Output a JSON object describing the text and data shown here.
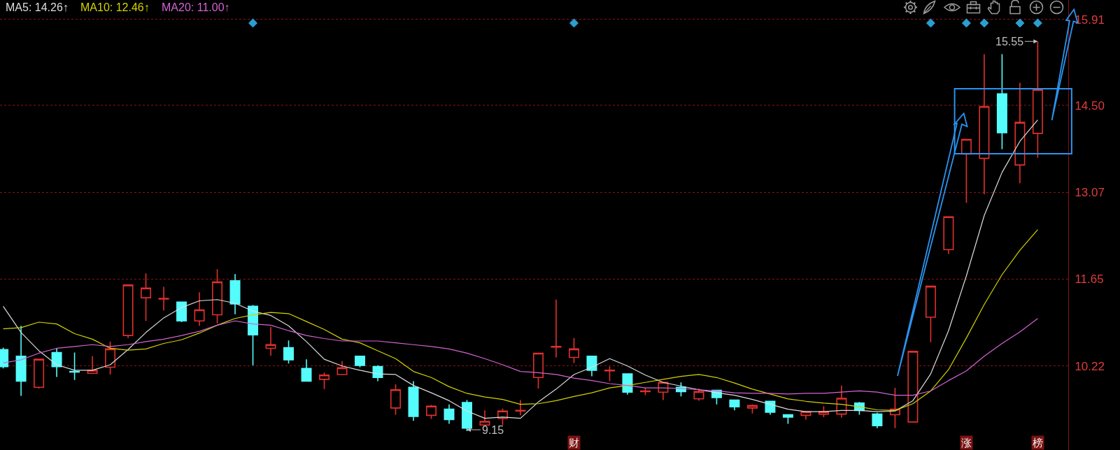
{
  "chart_data": {
    "type": "candlestick",
    "categories": [
      null,
      null,
      null,
      null,
      null,
      null,
      null,
      null,
      null,
      null,
      null,
      null,
      null,
      null,
      null,
      null,
      null,
      null,
      null,
      null,
      null,
      null,
      null,
      null,
      null,
      null,
      null,
      null,
      null,
      null,
      null,
      null,
      "财",
      null,
      null,
      null,
      null,
      null,
      null,
      null,
      null,
      null,
      null,
      null,
      null,
      null,
      null,
      null,
      null,
      null,
      null,
      null,
      null,
      null,
      "涨",
      null,
      null,
      null,
      "榜"
    ],
    "ohlc": [
      [
        10.49,
        10.52,
        10.18,
        10.21
      ],
      [
        10.38,
        10.88,
        9.73,
        9.97
      ],
      [
        9.87,
        10.33,
        9.85,
        10.33
      ],
      [
        10.44,
        10.51,
        10.04,
        10.21
      ],
      [
        10.13,
        10.44,
        9.99,
        10.12
      ],
      [
        10.1,
        10.38,
        10.1,
        10.15
      ],
      [
        10.2,
        10.62,
        10.08,
        10.5
      ],
      [
        10.72,
        11.55,
        10.68,
        11.55
      ],
      [
        11.34,
        11.74,
        10.96,
        11.5
      ],
      [
        11.32,
        11.52,
        11.13,
        11.33
      ],
      [
        11.27,
        11.27,
        10.94,
        10.96
      ],
      [
        10.96,
        11.43,
        10.88,
        11.14
      ],
      [
        11.06,
        11.81,
        10.92,
        11.6
      ],
      [
        11.62,
        11.73,
        11.07,
        11.24
      ],
      [
        11.2,
        11.22,
        10.23,
        10.73
      ],
      [
        10.51,
        10.86,
        10.39,
        10.57
      ],
      [
        10.52,
        10.64,
        10.26,
        10.32
      ],
      [
        10.18,
        10.33,
        9.97,
        9.97
      ],
      [
        10.0,
        10.11,
        9.84,
        10.07
      ],
      [
        10.08,
        10.3,
        10.08,
        10.19
      ],
      [
        10.38,
        10.38,
        10.2,
        10.23
      ],
      [
        10.21,
        10.23,
        9.97,
        10.03
      ],
      [
        9.53,
        9.92,
        9.42,
        9.83
      ],
      [
        9.87,
        9.97,
        9.32,
        9.39
      ],
      [
        9.41,
        9.58,
        9.35,
        9.56
      ],
      [
        9.51,
        9.59,
        9.27,
        9.34
      ],
      [
        9.62,
        9.66,
        9.15,
        9.2
      ],
      [
        9.25,
        9.49,
        9.25,
        9.31
      ],
      [
        9.36,
        9.52,
        9.25,
        9.48
      ],
      [
        9.48,
        9.66,
        9.41,
        9.49
      ],
      [
        10.03,
        10.43,
        9.85,
        10.43
      ],
      [
        10.53,
        11.31,
        10.36,
        10.54
      ],
      [
        10.36,
        10.68,
        10.27,
        10.5
      ],
      [
        10.38,
        10.38,
        10.05,
        10.15
      ],
      [
        10.14,
        10.21,
        9.97,
        10.15
      ],
      [
        10.09,
        10.09,
        9.75,
        9.79
      ],
      [
        9.8,
        9.86,
        9.74,
        9.81
      ],
      [
        9.79,
        9.95,
        9.66,
        9.95
      ],
      [
        9.87,
        9.95,
        9.72,
        9.8
      ],
      [
        9.68,
        9.85,
        9.65,
        9.8
      ],
      [
        9.82,
        9.83,
        9.59,
        9.7
      ],
      [
        9.66,
        9.66,
        9.49,
        9.55
      ],
      [
        9.53,
        9.59,
        9.44,
        9.57
      ],
      [
        9.64,
        9.64,
        9.42,
        9.46
      ],
      [
        9.42,
        9.42,
        9.27,
        9.38
      ],
      [
        9.41,
        9.47,
        9.34,
        9.47
      ],
      [
        9.43,
        9.56,
        9.38,
        9.47
      ],
      [
        9.43,
        9.9,
        9.37,
        9.69
      ],
      [
        9.61,
        9.63,
        9.42,
        9.49
      ],
      [
        9.43,
        9.45,
        9.2,
        9.24
      ],
      [
        9.42,
        9.86,
        9.2,
        9.51
      ],
      [
        9.3,
        10.46,
        9.3,
        10.46
      ],
      [
        11.02,
        11.53,
        10.61,
        11.53
      ],
      [
        12.13,
        12.67,
        12.06,
        12.67
      ],
      [
        13.7,
        13.94,
        12.9,
        13.94
      ],
      [
        13.63,
        15.34,
        13.04,
        14.48
      ],
      [
        14.69,
        15.34,
        13.78,
        14.05
      ],
      [
        13.52,
        14.87,
        13.22,
        14.22
      ],
      [
        14.04,
        15.55,
        13.64,
        14.76
      ]
    ],
    "colors": [
      "#54fcfc",
      "#54fcfc",
      "#e0302c",
      "#54fcfc",
      "#54fcfc",
      "#e0302c",
      "#e0302c",
      "#e0302c",
      "#e0302c",
      "#e0302c",
      "#54fcfc",
      "#e0302c",
      "#e0302c",
      "#54fcfc",
      "#54fcfc",
      "#e0302c",
      "#54fcfc",
      "#54fcfc",
      "#e0302c",
      "#e0302c",
      "#54fcfc",
      "#54fcfc",
      "#e0302c",
      "#54fcfc",
      "#e0302c",
      "#54fcfc",
      "#54fcfc",
      "#e0302c",
      "#e0302c",
      "#e0302c",
      "#e0302c",
      "#e0302c",
      "#e0302c",
      "#54fcfc",
      "#e0302c",
      "#54fcfc",
      "#e0302c",
      "#e0302c",
      "#54fcfc",
      "#e0302c",
      "#54fcfc",
      "#54fcfc",
      "#e0302c",
      "#54fcfc",
      "#54fcfc",
      "#e0302c",
      "#e0302c",
      "#e0302c",
      "#54fcfc",
      "#54fcfc",
      "#e0302c",
      "#e0302c",
      "#e0302c",
      "#e0302c",
      "#e0302c",
      "#e0302c",
      "#54fcfc",
      "#e0302c",
      "#e0302c"
    ],
    "series": [
      {
        "name": "MA5: 14.26↑",
        "type": "line",
        "color": "#dcdcdc",
        "values": [
          11.2,
          10.77,
          10.47,
          10.24,
          10.15,
          10.15,
          10.24,
          10.49,
          10.77,
          11.01,
          11.18,
          11.29,
          11.31,
          11.25,
          11.12,
          11.05,
          10.88,
          10.62,
          10.33,
          10.22,
          10.15,
          10.09,
          10.08,
          9.9,
          9.78,
          9.65,
          9.48,
          9.36,
          9.38,
          9.36,
          9.63,
          9.84,
          10.08,
          10.2,
          10.34,
          10.22,
          10.07,
          9.95,
          9.89,
          9.83,
          9.78,
          9.74,
          9.67,
          9.59,
          9.51,
          9.47,
          9.47,
          9.49,
          9.49,
          9.47,
          9.48,
          9.65,
          10.09,
          10.8,
          11.7,
          12.69,
          13.4,
          13.91,
          14.26
        ]
      },
      {
        "name": "MA10: 12.46↑",
        "type": "line",
        "color": "#d2d200",
        "values": [
          10.83,
          10.85,
          10.94,
          10.91,
          10.75,
          10.66,
          10.51,
          10.48,
          10.5,
          10.59,
          10.65,
          10.76,
          10.89,
          11.0,
          11.06,
          11.1,
          11.08,
          10.95,
          10.82,
          10.66,
          10.6,
          10.47,
          10.34,
          10.13,
          10.03,
          9.88,
          9.77,
          9.71,
          9.67,
          9.59,
          9.6,
          9.65,
          9.72,
          9.78,
          9.86,
          9.9,
          9.95,
          10.0,
          10.05,
          10.08,
          10.03,
          9.94,
          9.84,
          9.76,
          9.68,
          9.64,
          9.61,
          9.59,
          9.55,
          9.5,
          9.49,
          9.6,
          9.81,
          10.16,
          10.68,
          11.23,
          11.72,
          12.12,
          12.46
        ]
      },
      {
        "name": "MA20: 11.00↑",
        "type": "line",
        "color": "#d264d2",
        "values": [
          10.27,
          10.32,
          10.43,
          10.51,
          10.54,
          10.57,
          10.54,
          10.57,
          10.62,
          10.66,
          10.72,
          10.79,
          10.89,
          10.96,
          10.91,
          10.89,
          10.8,
          10.72,
          10.67,
          10.63,
          10.63,
          10.63,
          10.6,
          10.57,
          10.54,
          10.5,
          10.43,
          10.34,
          10.24,
          10.13,
          10.11,
          10.08,
          10.02,
          9.98,
          9.93,
          9.9,
          9.86,
          9.86,
          9.85,
          9.83,
          9.81,
          9.78,
          9.77,
          9.77,
          9.76,
          9.77,
          9.77,
          9.79,
          9.81,
          9.79,
          9.74,
          9.74,
          9.81,
          9.98,
          10.14,
          10.38,
          10.59,
          10.78,
          11.0
        ]
      }
    ],
    "ylim": [
      8.84,
      16.23
    ],
    "yticks": [
      10.22,
      11.65,
      13.07,
      {
        "value": 14.5,
        "label": "14.50"
      },
      15.91
    ],
    "grid": "y",
    "legend": "top left",
    "annotations": [
      {
        "text": "15.55",
        "x": "榜",
        "y": 15.55
      },
      "9.15"
    ]
  }
}
